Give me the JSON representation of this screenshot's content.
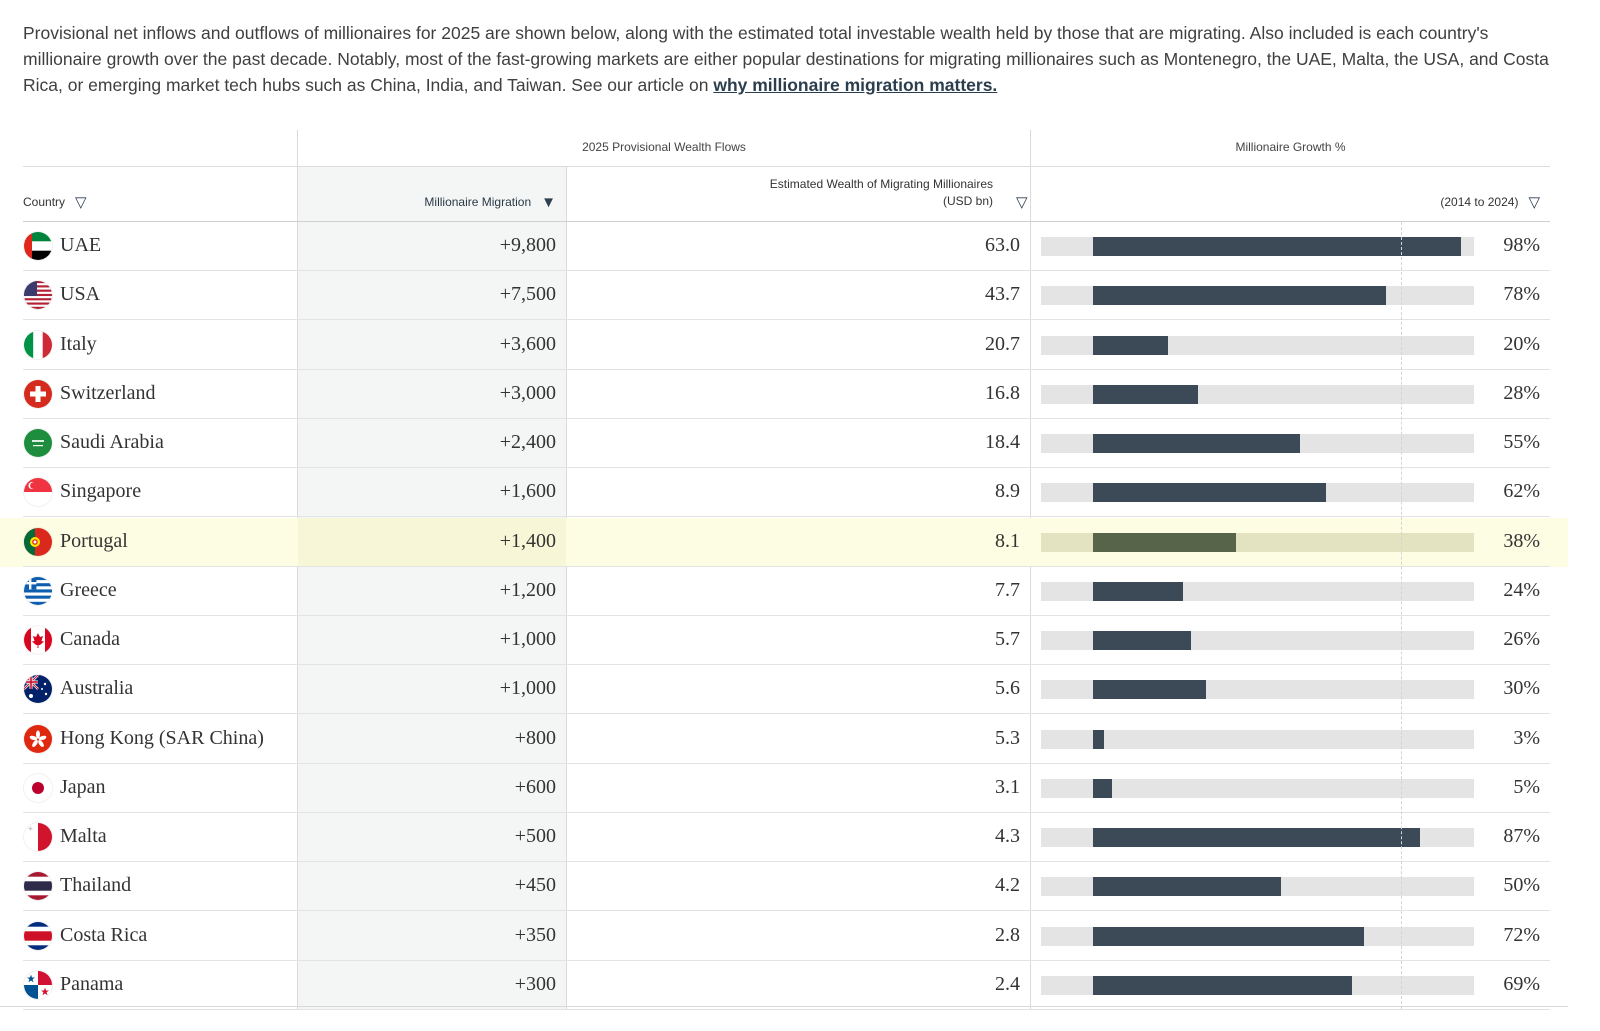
{
  "intro": {
    "text": "Provisional net inflows and outflows of millionaires for 2025 are shown below, along with the estimated total investable wealth held by those that are migrating. Also included is each country's millionaire growth over the past decade. Notably, most of the fast-growing markets are either popular destinations for migrating millionaires such as Montenegro, the UAE, Malta, the USA, and Costa Rica, or emerging market tech hubs such as China, India, and Taiwan. See our article on ",
    "link": "why millionaire migration matters."
  },
  "groups": {
    "flows": "2025 Provisional Wealth Flows",
    "growth": "Millionaire Growth %"
  },
  "columns": {
    "country": "Country",
    "migration": "Millionaire Migration",
    "wealth_line1": "Estimated Wealth of Migrating Millionaires",
    "wealth_line2": "(USD bn)",
    "growth": "(2014 to 2024)"
  },
  "icons": {
    "filter": "filter-icon",
    "sort": "sort-descending-icon"
  },
  "colors": {
    "bar": "#3c4a58",
    "track": "#e4e4e4",
    "highlight_row": "#fdfde3"
  },
  "rows": [
    {
      "country": "UAE",
      "flag": "uae",
      "migration": "+9,800",
      "wealth": "63.0",
      "growth_label": "98%",
      "growth": 98
    },
    {
      "country": "USA",
      "flag": "usa",
      "migration": "+7,500",
      "wealth": "43.7",
      "growth_label": "78%",
      "growth": 78
    },
    {
      "country": "Italy",
      "flag": "italy",
      "migration": "+3,600",
      "wealth": "20.7",
      "growth_label": "20%",
      "growth": 20
    },
    {
      "country": "Switzerland",
      "flag": "switzerland",
      "migration": "+3,000",
      "wealth": "16.8",
      "growth_label": "28%",
      "growth": 28
    },
    {
      "country": "Saudi Arabia",
      "flag": "saudi",
      "migration": "+2,400",
      "wealth": "18.4",
      "growth_label": "55%",
      "growth": 55
    },
    {
      "country": "Singapore",
      "flag": "singapore",
      "migration": "+1,600",
      "wealth": "8.9",
      "growth_label": "62%",
      "growth": 62
    },
    {
      "country": "Portugal",
      "flag": "portugal",
      "migration": "+1,400",
      "wealth": "8.1",
      "growth_label": "38%",
      "growth": 38,
      "highlighted": true
    },
    {
      "country": "Greece",
      "flag": "greece",
      "migration": "+1,200",
      "wealth": "7.7",
      "growth_label": "24%",
      "growth": 24
    },
    {
      "country": "Canada",
      "flag": "canada",
      "migration": "+1,000",
      "wealth": "5.7",
      "growth_label": "26%",
      "growth": 26
    },
    {
      "country": "Australia",
      "flag": "australia",
      "migration": "+1,000",
      "wealth": "5.6",
      "growth_label": "30%",
      "growth": 30
    },
    {
      "country": "Hong Kong (SAR China)",
      "flag": "hongkong",
      "migration": "+800",
      "wealth": "5.3",
      "growth_label": "3%",
      "growth": 3
    },
    {
      "country": "Japan",
      "flag": "japan",
      "migration": "+600",
      "wealth": "3.1",
      "growth_label": "5%",
      "growth": 5
    },
    {
      "country": "Malta",
      "flag": "malta",
      "migration": "+500",
      "wealth": "4.3",
      "growth_label": "87%",
      "growth": 87
    },
    {
      "country": "Thailand",
      "flag": "thailand",
      "migration": "+450",
      "wealth": "4.2",
      "growth_label": "50%",
      "growth": 50
    },
    {
      "country": "Costa Rica",
      "flag": "costarica",
      "migration": "+350",
      "wealth": "2.8",
      "growth_label": "72%",
      "growth": 72
    },
    {
      "country": "Panama",
      "flag": "panama",
      "migration": "+300",
      "wealth": "2.4",
      "growth_label": "69%",
      "growth": 69
    }
  ]
}
